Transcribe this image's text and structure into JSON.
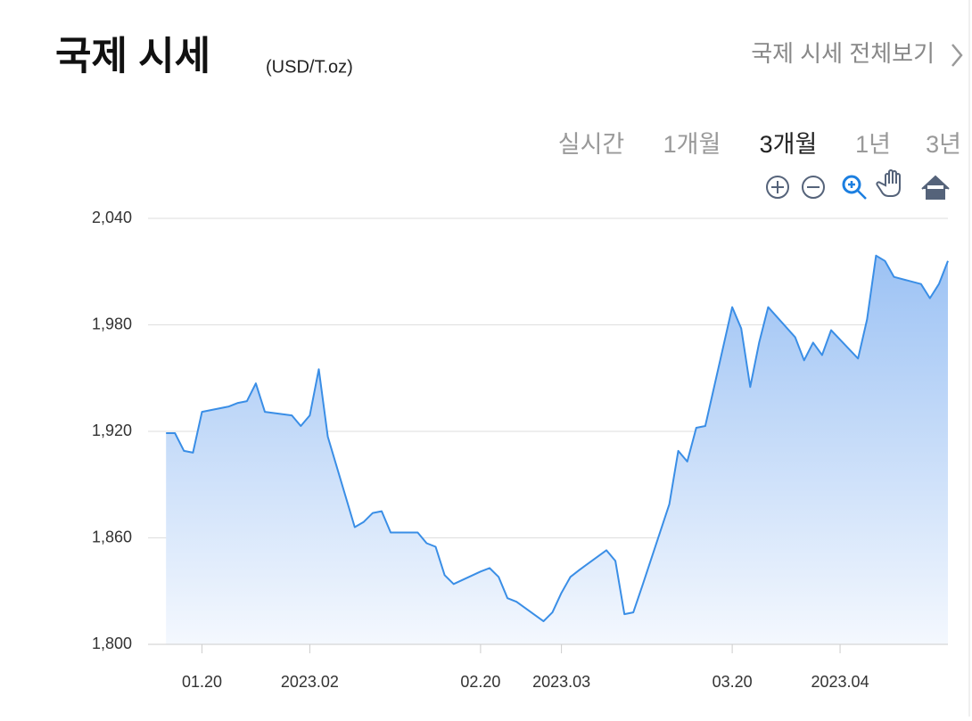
{
  "header": {
    "title": "국제 시세",
    "unit": "(USD/T.oz)",
    "link": "국제 시세 전체보기"
  },
  "tabs": {
    "items": [
      "실시간",
      "1개월",
      "3개월",
      "1년",
      "3년"
    ],
    "selected": 2
  },
  "chart_data": {
    "type": "area",
    "color": "#3a8ee6",
    "grid": true,
    "x": [
      "2023-01-16",
      "2023-01-17",
      "2023-01-18",
      "2023-01-19",
      "2023-01-20",
      "2023-01-23",
      "2023-01-24",
      "2023-01-25",
      "2023-01-26",
      "2023-01-27",
      "2023-01-30",
      "2023-01-31",
      "2023-02-01",
      "2023-02-02",
      "2023-02-03",
      "2023-02-06",
      "2023-02-07",
      "2023-02-08",
      "2023-02-09",
      "2023-02-10",
      "2023-02-13",
      "2023-02-14",
      "2023-02-15",
      "2023-02-16",
      "2023-02-17",
      "2023-02-20",
      "2023-02-21",
      "2023-02-22",
      "2023-02-23",
      "2023-02-24",
      "2023-02-27",
      "2023-02-28",
      "2023-03-01",
      "2023-03-02",
      "2023-03-03",
      "2023-03-06",
      "2023-03-07",
      "2023-03-08",
      "2023-03-09",
      "2023-03-10",
      "2023-03-13",
      "2023-03-14",
      "2023-03-15",
      "2023-03-16",
      "2023-03-17",
      "2023-03-20",
      "2023-03-21",
      "2023-03-22",
      "2023-03-23",
      "2023-03-24",
      "2023-03-27",
      "2023-03-28",
      "2023-03-29",
      "2023-03-30",
      "2023-03-31",
      "2023-04-03",
      "2023-04-04",
      "2023-04-05",
      "2023-04-06",
      "2023-04-07",
      "2023-04-10",
      "2023-04-11",
      "2023-04-12",
      "2023-04-13"
    ],
    "values": [
      1919,
      1919,
      1909,
      1908,
      1931,
      1934,
      1936,
      1937,
      1947,
      1931,
      1929,
      1923,
      1929,
      1955,
      1917,
      1866,
      1869,
      1874,
      1875,
      1863,
      1863,
      1857,
      1855,
      1839,
      1834,
      1841,
      1843,
      1838,
      1826,
      1824,
      1813,
      1818,
      1829,
      1838,
      1842,
      1853,
      1847,
      1817,
      1818,
      1833,
      1879,
      1909,
      1903,
      1922,
      1923,
      1990,
      1978,
      1945,
      1970,
      1990,
      1973,
      1960,
      1970,
      1963,
      1977,
      1961,
      1983,
      2019,
      2016,
      2007,
      2003,
      1995,
      2003,
      2016
    ],
    "xlim": [
      "2023-01-14",
      "2023-04-13"
    ],
    "xticks": [
      {
        "value": "2023-01-20",
        "label": "01.20"
      },
      {
        "value": "2023-02-01",
        "label": "2023.02"
      },
      {
        "value": "2023-02-20",
        "label": "02.20"
      },
      {
        "value": "2023-03-01",
        "label": "2023.03"
      },
      {
        "value": "2023-03-20",
        "label": "03.20"
      },
      {
        "value": "2023-04-01",
        "label": "2023.04"
      }
    ],
    "ylim": [
      1800,
      2040
    ],
    "yticks": [
      {
        "value": 1800,
        "label": "1,800"
      },
      {
        "value": 1860,
        "label": "1,860"
      },
      {
        "value": 1920,
        "label": "1,920"
      },
      {
        "value": 1980,
        "label": "1,980"
      },
      {
        "value": 2040,
        "label": "2,040"
      }
    ]
  }
}
